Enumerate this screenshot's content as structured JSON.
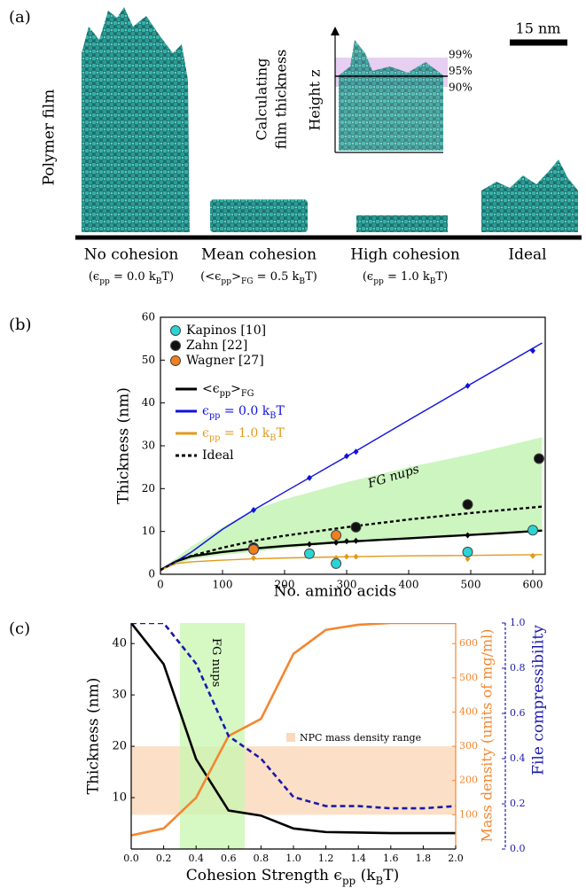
{
  "panel_a": {
    "label": "(a)",
    "y_label": "Polymer film",
    "scale_bar": "15 nm",
    "inset_title": [
      "Calculating",
      "film thickness"
    ],
    "inset_axis": "Height z",
    "percent_labels": [
      "99%",
      "95%",
      "90%"
    ],
    "films": [
      {
        "name": "No cohesion",
        "condition": [
          "(ϵ",
          "pp",
          " = 0.0 k",
          "B",
          "T)"
        ]
      },
      {
        "name": "Mean cohesion",
        "condition": [
          "(<ϵ",
          "pp",
          ">",
          "FG",
          " = 0.5 k",
          "B",
          "T)"
        ]
      },
      {
        "name": "High cohesion",
        "condition": [
          "(ϵ",
          "pp",
          " = 1.0 k",
          "B",
          "T)"
        ]
      },
      {
        "name": "Ideal"
      }
    ]
  },
  "chart_data": [
    {
      "type": "line",
      "panel_label": "(b)",
      "xlabel": "No. amino acids",
      "ylabel": "Thickness (nm)",
      "xlim": [
        0,
        620
      ],
      "ylim": [
        0,
        60
      ],
      "xticks": [
        0,
        100,
        200,
        300,
        400,
        500,
        600
      ],
      "yticks": [
        0,
        10,
        20,
        30,
        40,
        50,
        60
      ],
      "annotation": "FG nups",
      "band": {
        "color": "#cdf5c0",
        "x": [
          0,
          50,
          100,
          150,
          200,
          300,
          400,
          500,
          615
        ],
        "lower": [
          1,
          3.5,
          4.5,
          5.2,
          6,
          7.4,
          8.5,
          9.3,
          10.2
        ],
        "upper": [
          1,
          6.5,
          11,
          15,
          17.5,
          21.5,
          25,
          28,
          32
        ]
      },
      "legend": "upper left",
      "series": [
        {
          "name": "Kapinos [10]",
          "style": "scatter",
          "color": "#2ad4d4",
          "x": [
            240,
            283,
            495,
            600
          ],
          "values": [
            4.8,
            2.5,
            5.2,
            10.3
          ]
        },
        {
          "name": "Zahn [22]",
          "style": "scatter",
          "color": "#111111",
          "x": [
            150,
            315,
            495,
            610
          ],
          "values": [
            6.2,
            11,
            16.3,
            27
          ]
        },
        {
          "name": "Wagner [27]",
          "style": "scatter",
          "color": "#f07f1f",
          "x": [
            150,
            283
          ],
          "values": [
            5.8,
            9.1
          ]
        },
        {
          "name": [
            "<ϵ",
            "pp",
            ">",
            "FG"
          ],
          "style": "solid",
          "color": "#000000",
          "x": [
            0,
            25,
            50,
            100,
            150,
            200,
            250,
            300,
            350,
            400,
            450,
            500,
            550,
            615
          ],
          "values": [
            1,
            3,
            4.2,
            5.2,
            6,
            6.6,
            7.1,
            7.6,
            8,
            8.4,
            8.8,
            9.2,
            9.6,
            10.2
          ],
          "marker_x": [
            150,
            240,
            283,
            300,
            315,
            495,
            600
          ],
          "marker_values": [
            6,
            7,
            7.4,
            7.7,
            7.8,
            9.1,
            10.1
          ]
        },
        {
          "name": [
            "ϵ",
            "pp",
            " = 0.0 k",
            "B",
            "T"
          ],
          "style": "thin",
          "color": "#1010e0",
          "x": [
            0,
            25,
            50,
            100,
            150,
            200,
            300,
            400,
            500,
            615
          ],
          "values": [
            1,
            3,
            5.2,
            10.5,
            15,
            19.2,
            27.5,
            36,
            44.4,
            54
          ],
          "marker_x": [
            150,
            240,
            300,
            315,
            495,
            600
          ],
          "marker_values": [
            15,
            22.5,
            27.6,
            28.6,
            44,
            52.2
          ]
        },
        {
          "name": [
            "ϵ",
            "pp",
            " = 1.0 k",
            "B",
            "T"
          ],
          "style": "thin",
          "color": "#e29a1c",
          "x": [
            0,
            25,
            50,
            100,
            150,
            200,
            300,
            400,
            500,
            615
          ],
          "values": [
            1,
            2.5,
            2.9,
            3.3,
            3.6,
            3.8,
            4.1,
            4.3,
            4.4,
            4.6
          ],
          "marker_x": [
            150,
            283,
            300,
            315,
            495,
            600
          ],
          "marker_values": [
            3.8,
            3.8,
            4.1,
            4.1,
            3.6,
            4.3
          ]
        },
        {
          "name": "Ideal",
          "style": "dashed",
          "color": "#000000",
          "x": [
            0,
            25,
            50,
            100,
            150,
            200,
            300,
            400,
            500,
            615
          ],
          "values": [
            1,
            3,
            4.3,
            6.2,
            7.8,
            9,
            11,
            12.8,
            14.3,
            15.8
          ]
        }
      ]
    },
    {
      "type": "line",
      "panel_label": "(c)",
      "xlabel": [
        "Cohesion Strength ϵ",
        "pp",
        " (k",
        "B",
        "T)"
      ],
      "ylabel": "Thickness (nm)",
      "y2label": "Mass density (units of mg/ml)",
      "y3label": "File compressibility",
      "xlim": [
        0,
        2
      ],
      "xticks": [
        {
          "value": 0,
          "label": "0.0"
        },
        0.2,
        0.4,
        0.6,
        0.8,
        {
          "value": 1,
          "label": "1.0"
        },
        1.2,
        1.4,
        1.6,
        1.8,
        {
          "value": 2,
          "label": "2.0"
        }
      ],
      "ylim": [
        0,
        44
      ],
      "yticks": [
        10,
        20,
        30,
        40
      ],
      "y2lim": [
        0,
        660
      ],
      "y2ticks": [
        100,
        200,
        300,
        400,
        500,
        600
      ],
      "y2color": "#f5862f",
      "y3lim": [
        0,
        1
      ],
      "y3ticks": [
        {
          "value": 0,
          "label": "0.0"
        },
        0.2,
        0.4,
        0.6,
        0.8,
        {
          "value": 1,
          "label": "1.0"
        }
      ],
      "y3color": "#1a1aa8",
      "bands": [
        {
          "name": "NPC mass density range",
          "axis": "y2",
          "range": [
            100,
            300
          ],
          "color": "#fbd9bd"
        },
        {
          "name": "FG nups",
          "x_range": [
            0.3,
            0.7
          ],
          "color": "#c8f7b0"
        }
      ],
      "x": [
        0,
        0.2,
        0.4,
        0.6,
        0.8,
        1.0,
        1.2,
        1.4,
        1.6,
        1.8,
        2.0
      ],
      "series": [
        {
          "style": "solid",
          "color": "#000000",
          "values": [
            44,
            36,
            17.5,
            7.5,
            6.5,
            4,
            3.3,
            3.2,
            3.1,
            3.1,
            3.1
          ]
        },
        {
          "style": "solid",
          "color": "#f5862f",
          "axis": "y2",
          "values": [
            40,
            60,
            150,
            330,
            380,
            570,
            640,
            655,
            660,
            660,
            660
          ]
        },
        {
          "style": "dashed",
          "color": "#1a1aa8",
          "axis": "y3",
          "values": [
            1,
            1,
            0.82,
            0.5,
            0.4,
            0.23,
            0.19,
            0.19,
            0.18,
            0.18,
            0.19
          ]
        }
      ]
    }
  ]
}
